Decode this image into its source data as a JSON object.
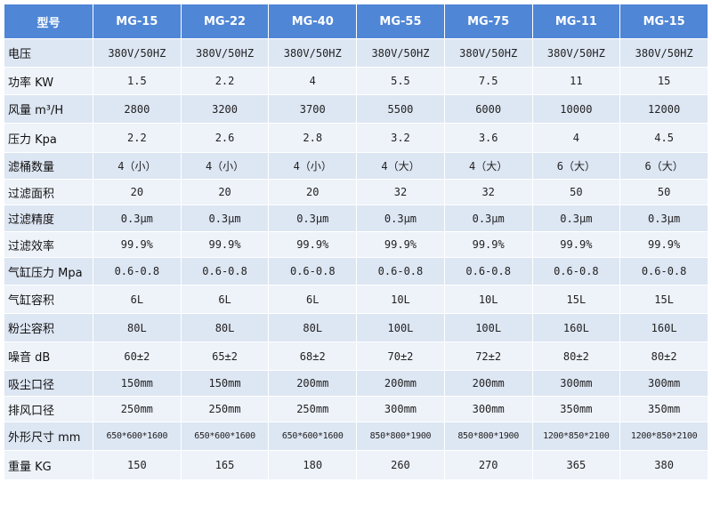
{
  "header": [
    "型号",
    "MG-15",
    "MG-22",
    "MG-40",
    "MG-55",
    "MG-75",
    "MG-11",
    "MG-15"
  ],
  "rows": [
    {
      "label": "电压",
      "values": [
        "380V/50HZ",
        "380V/50HZ",
        "380V/50HZ",
        "380V/50HZ",
        "380V/50HZ",
        "380V/50HZ",
        "380V/50HZ"
      ]
    },
    {
      "label": "功率 KW",
      "values": [
        "1.5",
        "2.2",
        "4",
        "5.5",
        "7.5",
        "11",
        "15"
      ]
    },
    {
      "label": "风量 m³/H",
      "values": [
        "2800",
        "3200",
        "3700",
        "5500",
        "6000",
        "10000",
        "12000"
      ]
    },
    {
      "label": "压力 Kpa",
      "values": [
        "2.2",
        "2.6",
        "2.8",
        "3.2",
        "3.6",
        "4",
        "4.5"
      ]
    },
    {
      "label": "滤桶数量",
      "values": [
        "4（小）",
        "4（小）",
        "4（小）",
        "4（大）",
        "4（大）",
        "6（大）",
        "6（大）"
      ]
    },
    {
      "label": "过滤面积",
      "values": [
        "20",
        "20",
        "20",
        "32",
        "32",
        "50",
        "50"
      ]
    },
    {
      "label": "过滤精度",
      "values": [
        "0.3μm",
        "0.3μm",
        "0.3μm",
        "0.3μm",
        "0.3μm",
        "0.3μm",
        "0.3μm"
      ]
    },
    {
      "label": "过滤效率",
      "values": [
        "99.9%",
        "99.9%",
        "99.9%",
        "99.9%",
        "99.9%",
        "99.9%",
        "99.9%"
      ]
    },
    {
      "label": "气缸压力 Mpa",
      "values": [
        "0.6-0.8",
        "0.6-0.8",
        "0.6-0.8",
        "0.6-0.8",
        "0.6-0.8",
        "0.6-0.8",
        "0.6-0.8"
      ]
    },
    {
      "label": "气缸容积",
      "values": [
        "6L",
        "6L",
        "6L",
        "10L",
        "10L",
        "15L",
        "15L"
      ]
    },
    {
      "label": "粉尘容积",
      "values": [
        "80L",
        "80L",
        "80L",
        "100L",
        "100L",
        "160L",
        "160L"
      ]
    },
    {
      "label": "噪音 dB",
      "values": [
        "60±2",
        "65±2",
        "68±2",
        "70±2",
        "72±2",
        "80±2",
        "80±2"
      ]
    },
    {
      "label": "吸尘口径",
      "values": [
        "150mm",
        "150mm",
        "200mm",
        "200mm",
        "200mm",
        "300mm",
        "300mm"
      ]
    },
    {
      "label": "排风口径",
      "values": [
        "250mm",
        "250mm",
        "250mm",
        "300mm",
        "300mm",
        "350mm",
        "350mm"
      ]
    },
    {
      "label": "外形尺寸 mm",
      "values": [
        "650*600*1600",
        "650*600*1600",
        "650*600*1600",
        "850*800*1900",
        "850*800*1900",
        "1200*850*2100",
        "1200*850*2100"
      ]
    },
    {
      "label": "重量 KG",
      "values": [
        "150",
        "165",
        "180",
        "260",
        "270",
        "365",
        "380"
      ]
    }
  ]
}
